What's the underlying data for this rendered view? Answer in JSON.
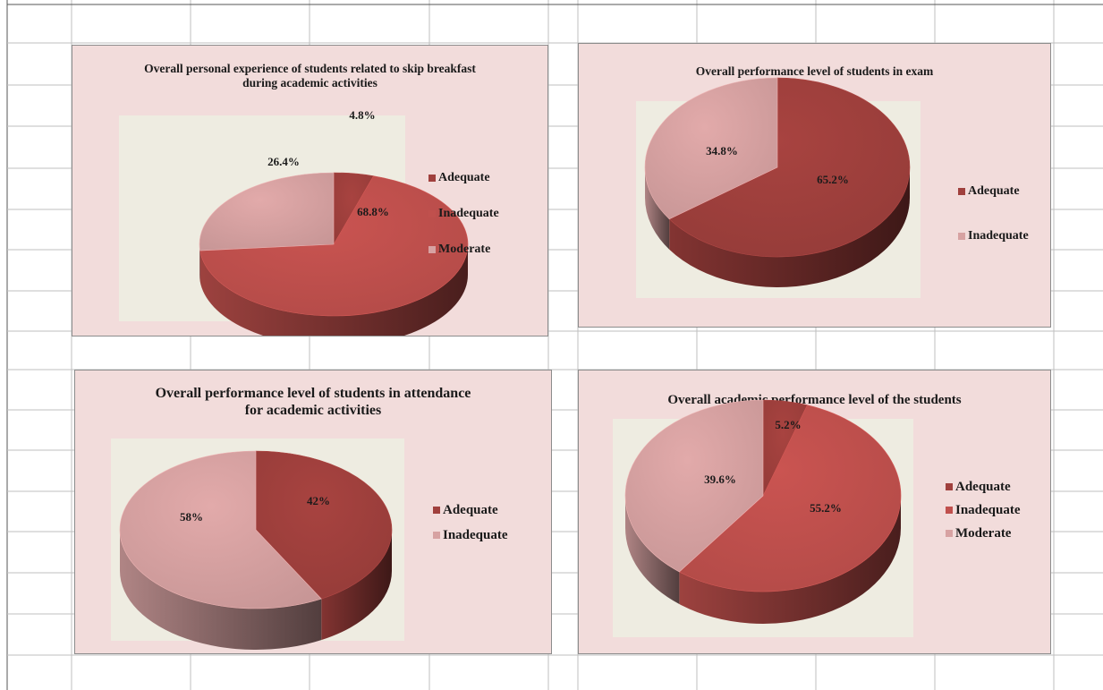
{
  "colors": {
    "adequate": "#a0403d",
    "inadequate": "#c0504d",
    "moderate": "#d7a2a2",
    "chart_background": "#f2dcdb",
    "plot_background": "#eeece1",
    "gridline": "#bfbfbf"
  },
  "chart_data": [
    {
      "type": "pie",
      "style": "3d",
      "title_lines": [
        "Overall personal experience of students related to skip breakfast",
        "during academic activities"
      ],
      "legend_position": "right",
      "slices": [
        {
          "label": "Adequate",
          "value": 4.8,
          "data_label": "4.8%",
          "color_key": "adequate"
        },
        {
          "label": "Inadequate",
          "value": 68.8,
          "data_label": "68.8%",
          "color_key": "inadequate"
        },
        {
          "label": "Moderate",
          "value": 26.4,
          "data_label": "26.4%",
          "color_key": "moderate"
        }
      ]
    },
    {
      "type": "pie",
      "style": "3d",
      "title_lines": [
        "Overall performance level of students in exam"
      ],
      "legend_position": "right",
      "slices": [
        {
          "label": "Adequate",
          "value": 65.2,
          "data_label": "65.2%",
          "color_key": "adequate"
        },
        {
          "label": "Inadequate",
          "value": 34.8,
          "data_label": "34.8%",
          "color_key": "moderate"
        }
      ]
    },
    {
      "type": "pie",
      "style": "3d",
      "title_lines": [
        "Overall performance level of students in attendance",
        "for academic activities"
      ],
      "legend_position": "right",
      "slices": [
        {
          "label": "Adequate",
          "value": 42,
          "data_label": "42%",
          "color_key": "adequate"
        },
        {
          "label": "Inadequate",
          "value": 58,
          "data_label": "58%",
          "color_key": "moderate"
        }
      ]
    },
    {
      "type": "pie",
      "style": "3d",
      "title_lines": [
        "Overall academic performance level of the students"
      ],
      "legend_position": "right",
      "slices": [
        {
          "label": "Adequate",
          "value": 5.2,
          "data_label": "5.2%",
          "color_key": "adequate"
        },
        {
          "label": "Inadequate",
          "value": 55.2,
          "data_label": "55.2%",
          "color_key": "inadequate"
        },
        {
          "label": "Moderate",
          "value": 39.6,
          "data_label": "39.6%",
          "color_key": "moderate"
        }
      ]
    }
  ]
}
